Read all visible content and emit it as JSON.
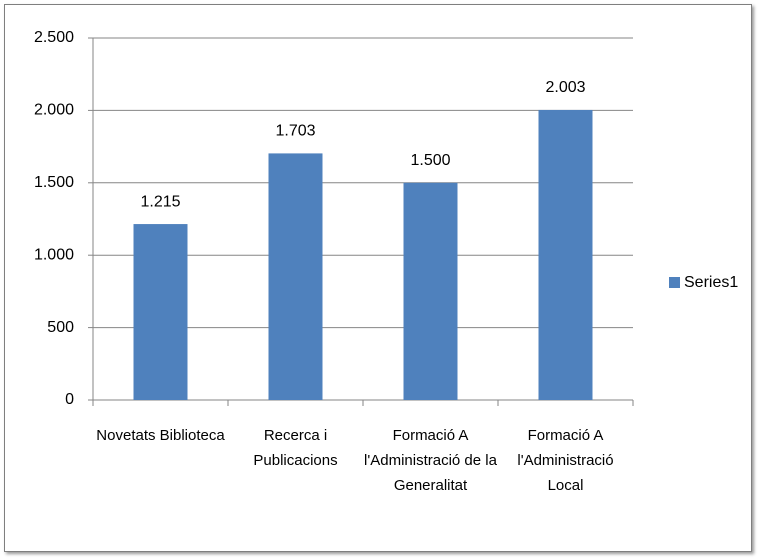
{
  "chart_data": {
    "type": "bar",
    "categories": [
      "Novetats Biblioteca",
      "Recerca i Publicacions",
      "Formació A l'Administració de la Generalitat",
      "Formació A l'Administració Local"
    ],
    "series": [
      {
        "name": "Series1",
        "color": "#4f81bd",
        "values": [
          1215,
          1703,
          1500,
          2003
        ],
        "value_labels": [
          "1.215",
          "1.703",
          "1.500",
          "2.003"
        ]
      }
    ],
    "ylim": [
      0,
      2500
    ],
    "yticks": [
      0,
      500,
      {
        "value": 1000,
        "label": "1.000"
      },
      {
        "value": 1500,
        "label": "1.500"
      },
      {
        "value": 2000,
        "label": "2.000"
      },
      {
        "value": 2500,
        "label": "2.500"
      }
    ],
    "grid": true,
    "legend": "right"
  }
}
